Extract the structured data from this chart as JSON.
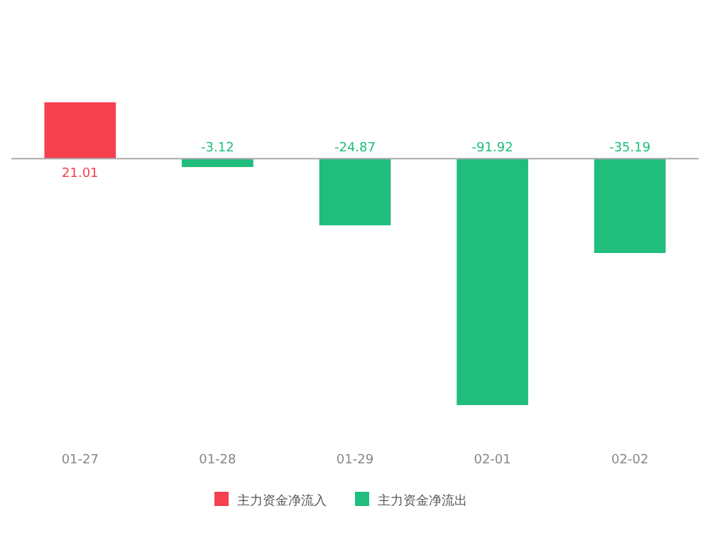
{
  "chart_data": {
    "type": "bar",
    "stacked": true,
    "categories": [
      "01-27",
      "01-28",
      "01-29",
      "02-01",
      "02-02"
    ],
    "series": [
      {
        "name": "主力资金净流入",
        "color": "#f5404f",
        "values": [
          21.01,
          null,
          null,
          null,
          null
        ]
      },
      {
        "name": "主力资金净流出",
        "color": "#20bd7d",
        "values": [
          null,
          -3.12,
          -24.87,
          -91.92,
          -35.19
        ]
      }
    ],
    "data_labels": true,
    "legend": "bottom"
  }
}
